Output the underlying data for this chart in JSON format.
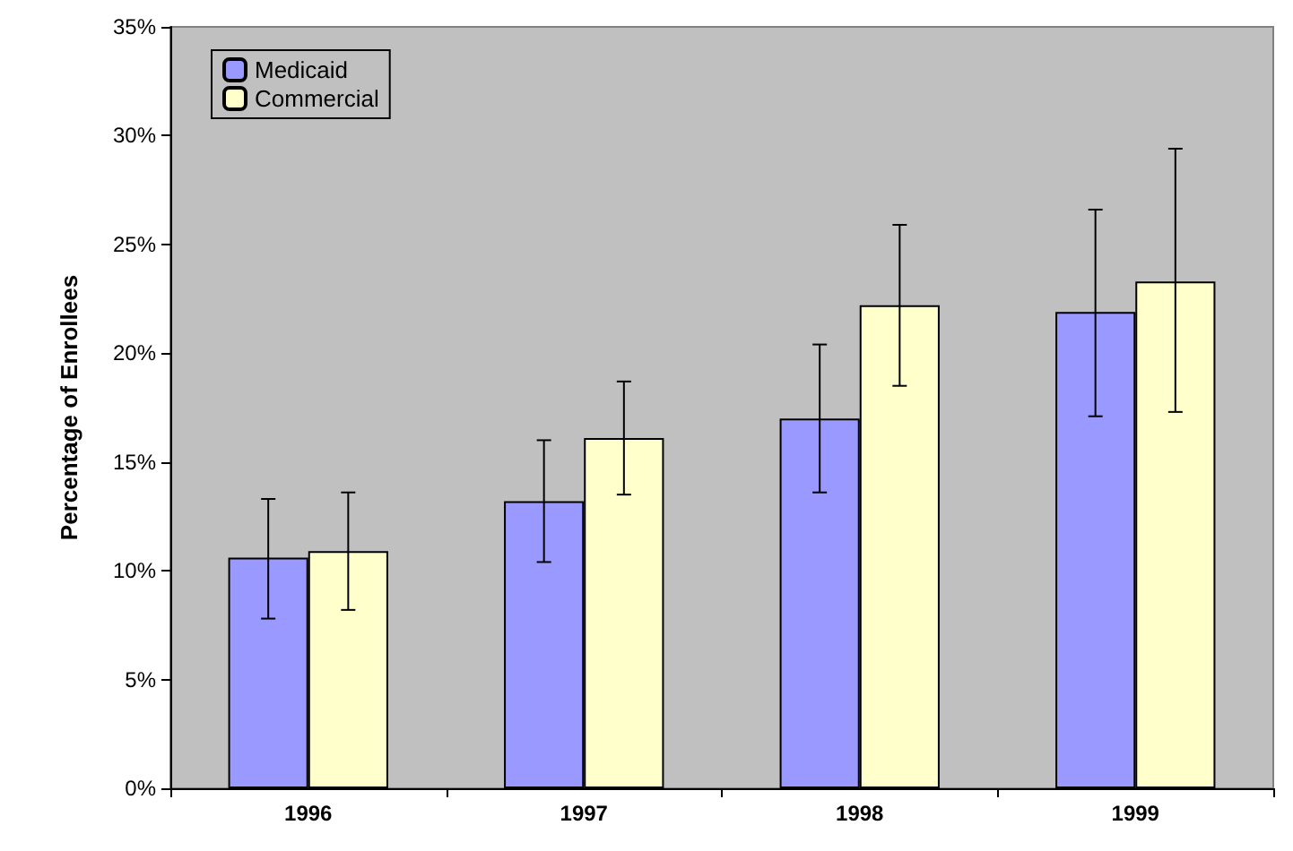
{
  "chart_data": {
    "type": "bar",
    "ylabel": "Percentage of Enrollees",
    "categories": [
      "1996",
      "1997",
      "1998",
      "1999"
    ],
    "series": [
      {
        "name": "Medicaid",
        "color": "#9999ff",
        "values": [
          10.6,
          13.2,
          17.0,
          21.9
        ],
        "errors": [
          [
            7.8,
            13.3
          ],
          [
            10.4,
            16.0
          ],
          [
            13.6,
            20.4
          ],
          [
            17.1,
            26.6
          ]
        ]
      },
      {
        "name": "Commercial",
        "color": "#ffffcc",
        "values": [
          10.9,
          16.1,
          22.2,
          23.3
        ],
        "errors": [
          [
            8.2,
            13.6
          ],
          [
            13.5,
            18.7
          ],
          [
            18.5,
            25.9
          ],
          [
            17.3,
            29.4
          ]
        ]
      }
    ],
    "ylim": [
      0,
      35
    ],
    "yticks": [
      {
        "value": 0,
        "label": "0%"
      },
      {
        "value": 5,
        "label": "5%"
      },
      {
        "value": 10,
        "label": "10%"
      },
      {
        "value": 15,
        "label": "15%"
      },
      {
        "value": 20,
        "label": "20%"
      },
      {
        "value": 25,
        "label": "25%"
      },
      {
        "value": 30,
        "label": "30%"
      },
      {
        "value": 35,
        "label": "35%"
      }
    ],
    "grid": false,
    "legend": "top left"
  }
}
